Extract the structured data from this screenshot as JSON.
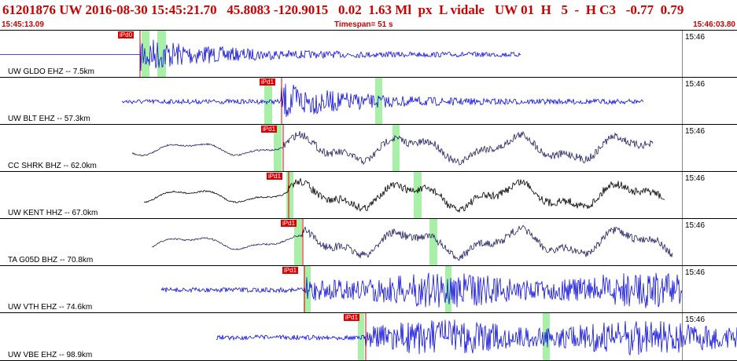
{
  "header": {
    "summary": "61201876 UW 2016-08-30 15:45:21.70   45.8083 -120.9015   0.02  1.63 Ml  px  L vidale   UW 01  H   5  -  H C3   -0.77  0.79",
    "time_start": "15:45:13.09",
    "timespan": "Timespan=  51 s",
    "time_end": "15:46:03.80"
  },
  "colors": {
    "header_text": "#cc0000",
    "pick": "#dd0000",
    "phase_band": "#a8f0a8",
    "trace_blue": "#1010dd",
    "trace_navy": "#202060",
    "trace_black": "#000000"
  },
  "panels": [
    {
      "label": "UW GLDO EHZ -- 7.5km",
      "time_tick": "15:46",
      "pick": "iPd0",
      "color": "#1010dd"
    },
    {
      "label": "UW BLT EHZ -- 57.3km",
      "time_tick": "15:46",
      "pick": "iPd1",
      "color": "#1010dd"
    },
    {
      "label": "CC SHRK BHZ -- 62.0km",
      "time_tick": "15:46",
      "pick": "iPd1",
      "color": "#202060"
    },
    {
      "label": "UW KENT HHZ -- 67.0km",
      "time_tick": "15:46",
      "pick": "iPd1",
      "color": "#000000"
    },
    {
      "label": "TA G05D BHZ -- 70.8km",
      "time_tick": "15:46",
      "pick": "iPd1",
      "color": "#202060"
    },
    {
      "label": "UW VTH EHZ -- 74.6km",
      "time_tick": "15:46",
      "pick": "iPd1",
      "color": "#1010dd"
    },
    {
      "label": "UW VBE EHZ -- 98.9km",
      "time_tick": "15:46",
      "pick": "iPd1",
      "color": "#1010dd"
    }
  ]
}
